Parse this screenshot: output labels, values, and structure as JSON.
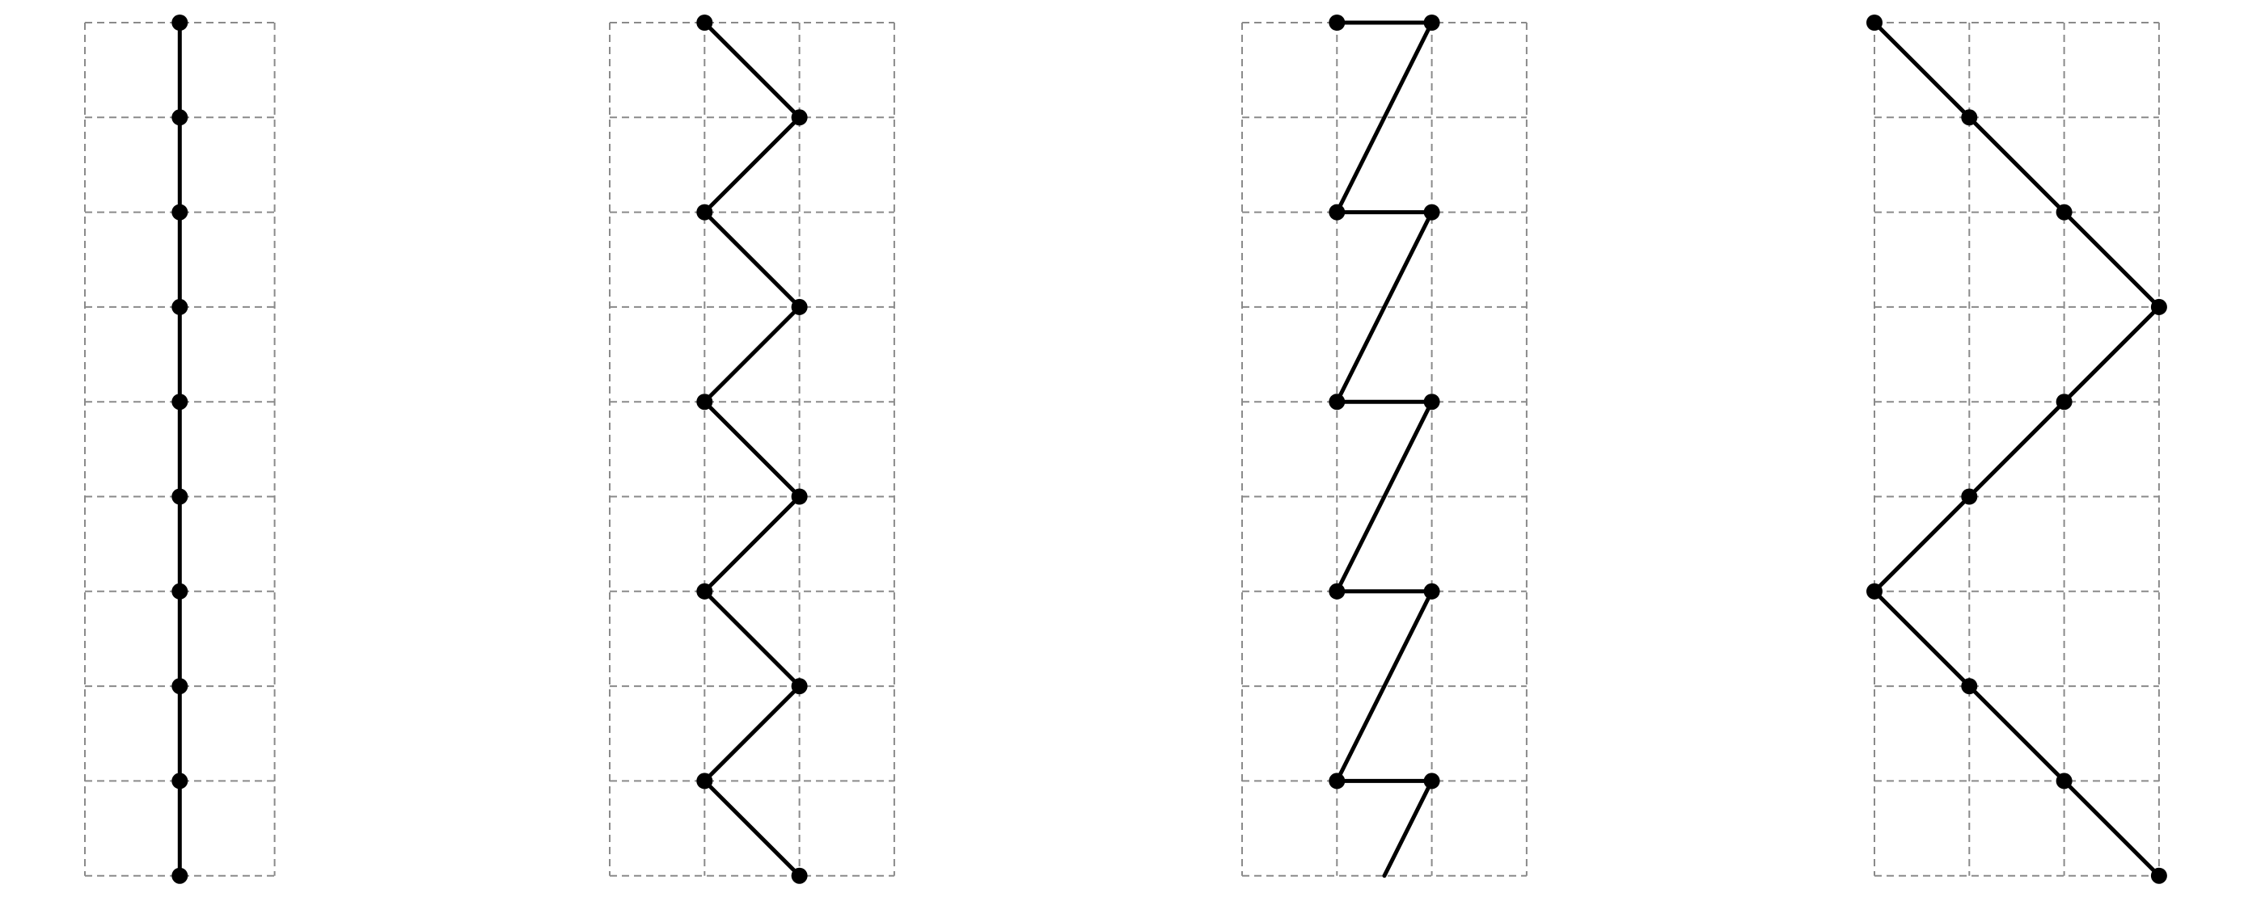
{
  "colors": {
    "grid": "#8a8a8a",
    "path": "#000000",
    "node": "#000000",
    "background": "#ffffff"
  },
  "panels": [
    {
      "id": "panel-1",
      "grid": {
        "columns": 2,
        "rows": 9
      },
      "nodes": [
        [
          1,
          0
        ],
        [
          1,
          1
        ],
        [
          1,
          2
        ],
        [
          1,
          3
        ],
        [
          1,
          4
        ],
        [
          1,
          5
        ],
        [
          1,
          6
        ],
        [
          1,
          7
        ],
        [
          1,
          8
        ],
        [
          1,
          9
        ]
      ],
      "tail": null
    },
    {
      "id": "panel-2",
      "grid": {
        "columns": 3,
        "rows": 9
      },
      "nodes": [
        [
          1,
          0
        ],
        [
          2,
          1
        ],
        [
          1,
          2
        ],
        [
          2,
          3
        ],
        [
          1,
          4
        ],
        [
          2,
          5
        ],
        [
          1,
          6
        ],
        [
          2,
          7
        ],
        [
          1,
          8
        ],
        [
          2,
          9
        ]
      ],
      "tail": null
    },
    {
      "id": "panel-3",
      "grid": {
        "columns": 3,
        "rows": 9
      },
      "nodes": [
        [
          1,
          0
        ],
        [
          2,
          0
        ],
        [
          1,
          2
        ],
        [
          2,
          2
        ],
        [
          1,
          4
        ],
        [
          2,
          4
        ],
        [
          1,
          6
        ],
        [
          2,
          6
        ],
        [
          1,
          8
        ],
        [
          2,
          8
        ]
      ],
      "tail": [
        1.5,
        9
      ]
    },
    {
      "id": "panel-4",
      "grid": {
        "columns": 3,
        "rows": 9
      },
      "nodes": [
        [
          0,
          0
        ],
        [
          1,
          1
        ],
        [
          2,
          2
        ],
        [
          3,
          3
        ],
        [
          2,
          4
        ],
        [
          1,
          5
        ],
        [
          0,
          6
        ],
        [
          1,
          7
        ],
        [
          2,
          8
        ],
        [
          3,
          9
        ]
      ],
      "tail": null
    }
  ]
}
